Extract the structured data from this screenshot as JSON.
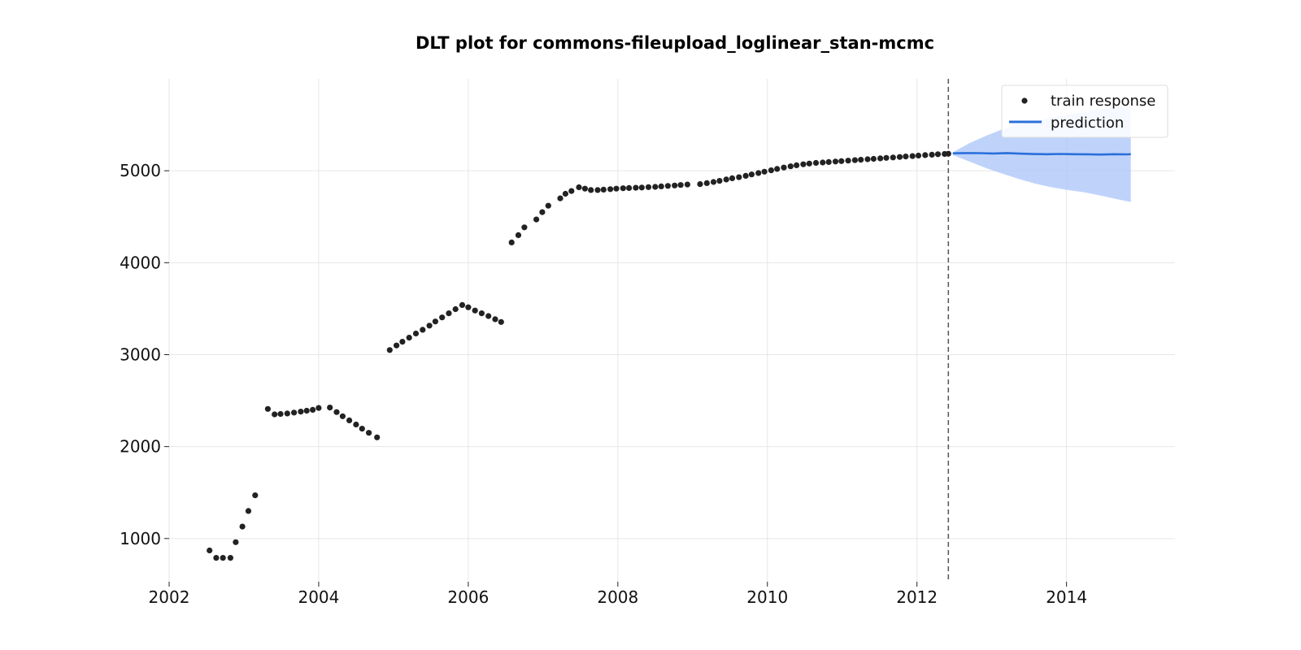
{
  "chart_data": {
    "type": "scatter",
    "title": "DLT plot for commons-fileupload_loglinear_stan-mcmc",
    "xlabel": "",
    "ylabel": "",
    "x_unit": "year",
    "xlim": [
      2002.0,
      2015.45
    ],
    "ylim": [
      530,
      6000
    ],
    "x_ticks": [
      2002,
      2004,
      2006,
      2008,
      2010,
      2012,
      2014
    ],
    "y_ticks": [
      1000,
      2000,
      3000,
      4000,
      5000
    ],
    "x_tick_labels": [
      "2002",
      "2004",
      "2006",
      "2008",
      "2010",
      "2012",
      "2014"
    ],
    "y_tick_labels": [
      "1000",
      "2000",
      "3000",
      "4000",
      "5000"
    ],
    "grid": true,
    "legend_position": "top-right",
    "forecast_start": 2012.42,
    "colors": {
      "train": "#222222",
      "prediction": "#2a6fdb",
      "interval": "#a9c4f8",
      "split_line": "#555555",
      "grid": "#e6e6e6"
    },
    "series": [
      {
        "name": "train response",
        "kind": "scatter",
        "points": [
          [
            2002.54,
            870
          ],
          [
            2002.63,
            790
          ],
          [
            2002.72,
            790
          ],
          [
            2002.82,
            790
          ],
          [
            2002.89,
            960
          ],
          [
            2002.98,
            1130
          ],
          [
            2003.06,
            1300
          ],
          [
            2003.15,
            1470
          ],
          [
            2003.32,
            2410
          ],
          [
            2003.41,
            2350
          ],
          [
            2003.49,
            2355
          ],
          [
            2003.58,
            2360
          ],
          [
            2003.67,
            2370
          ],
          [
            2003.76,
            2380
          ],
          [
            2003.84,
            2390
          ],
          [
            2003.92,
            2400
          ],
          [
            2004.0,
            2420
          ],
          [
            2004.15,
            2425
          ],
          [
            2004.24,
            2375
          ],
          [
            2004.32,
            2330
          ],
          [
            2004.41,
            2285
          ],
          [
            2004.5,
            2240
          ],
          [
            2004.58,
            2195
          ],
          [
            2004.67,
            2150
          ],
          [
            2004.78,
            2100
          ],
          [
            2004.95,
            3050
          ],
          [
            2005.04,
            3100
          ],
          [
            2005.12,
            3140
          ],
          [
            2005.21,
            3185
          ],
          [
            2005.3,
            3230
          ],
          [
            2005.39,
            3270
          ],
          [
            2005.48,
            3315
          ],
          [
            2005.56,
            3360
          ],
          [
            2005.65,
            3405
          ],
          [
            2005.74,
            3450
          ],
          [
            2005.83,
            3495
          ],
          [
            2005.92,
            3540
          ],
          [
            2006.0,
            3515
          ],
          [
            2006.09,
            3480
          ],
          [
            2006.18,
            3450
          ],
          [
            2006.27,
            3420
          ],
          [
            2006.36,
            3385
          ],
          [
            2006.44,
            3355
          ],
          [
            2006.58,
            4220
          ],
          [
            2006.67,
            4300
          ],
          [
            2006.75,
            4385
          ],
          [
            2006.91,
            4470
          ],
          [
            2006.99,
            4550
          ],
          [
            2007.07,
            4620
          ],
          [
            2007.23,
            4700
          ],
          [
            2007.3,
            4750
          ],
          [
            2007.38,
            4780
          ],
          [
            2007.48,
            4820
          ],
          [
            2007.56,
            4805
          ],
          [
            2007.64,
            4790
          ],
          [
            2007.73,
            4790
          ],
          [
            2007.81,
            4795
          ],
          [
            2007.9,
            4800
          ],
          [
            2007.98,
            4805
          ],
          [
            2008.07,
            4810
          ],
          [
            2008.15,
            4812
          ],
          [
            2008.24,
            4815
          ],
          [
            2008.32,
            4818
          ],
          [
            2008.41,
            4822
          ],
          [
            2008.5,
            4825
          ],
          [
            2008.58,
            4830
          ],
          [
            2008.67,
            4835
          ],
          [
            2008.76,
            4840
          ],
          [
            2008.84,
            4845
          ],
          [
            2008.93,
            4850
          ],
          [
            2009.1,
            4855
          ],
          [
            2009.19,
            4865
          ],
          [
            2009.28,
            4878
          ],
          [
            2009.36,
            4890
          ],
          [
            2009.45,
            4905
          ],
          [
            2009.53,
            4918
          ],
          [
            2009.62,
            4930
          ],
          [
            2009.71,
            4945
          ],
          [
            2009.79,
            4960
          ],
          [
            2009.88,
            4975
          ],
          [
            2009.96,
            4990
          ],
          [
            2010.05,
            5005
          ],
          [
            2010.13,
            5020
          ],
          [
            2010.22,
            5035
          ],
          [
            2010.31,
            5048
          ],
          [
            2010.39,
            5060
          ],
          [
            2010.48,
            5070
          ],
          [
            2010.56,
            5078
          ],
          [
            2010.65,
            5085
          ],
          [
            2010.74,
            5090
          ],
          [
            2010.82,
            5095
          ],
          [
            2010.91,
            5100
          ],
          [
            2010.99,
            5105
          ],
          [
            2011.08,
            5110
          ],
          [
            2011.17,
            5115
          ],
          [
            2011.25,
            5120
          ],
          [
            2011.34,
            5125
          ],
          [
            2011.42,
            5130
          ],
          [
            2011.51,
            5135
          ],
          [
            2011.59,
            5140
          ],
          [
            2011.68,
            5145
          ],
          [
            2011.77,
            5150
          ],
          [
            2011.85,
            5155
          ],
          [
            2011.94,
            5160
          ],
          [
            2012.02,
            5165
          ],
          [
            2012.11,
            5170
          ],
          [
            2012.2,
            5175
          ],
          [
            2012.28,
            5180
          ],
          [
            2012.37,
            5183
          ],
          [
            2012.42,
            5185
          ]
        ]
      },
      {
        "name": "prediction",
        "kind": "line",
        "points": [
          [
            2012.48,
            5190
          ],
          [
            2012.66,
            5192
          ],
          [
            2012.84,
            5191
          ],
          [
            2013.02,
            5188
          ],
          [
            2013.2,
            5192
          ],
          [
            2013.38,
            5186
          ],
          [
            2013.56,
            5182
          ],
          [
            2013.74,
            5180
          ],
          [
            2013.92,
            5183
          ],
          [
            2014.1,
            5180
          ],
          [
            2014.28,
            5179
          ],
          [
            2014.46,
            5176
          ],
          [
            2014.64,
            5180
          ],
          [
            2014.82,
            5178
          ],
          [
            2014.86,
            5181
          ]
        ]
      },
      {
        "name": "",
        "kind": "interval",
        "x": [
          2012.48,
          2012.7,
          2012.92,
          2013.14,
          2013.36,
          2013.58,
          2013.8,
          2014.02,
          2014.24,
          2014.46,
          2014.68,
          2014.86
        ],
        "upper": [
          5200,
          5300,
          5380,
          5450,
          5500,
          5540,
          5580,
          5610,
          5640,
          5670,
          5690,
          5700
        ],
        "lower": [
          5170,
          5100,
          5030,
          4970,
          4910,
          4860,
          4820,
          4790,
          4765,
          4730,
          4690,
          4660
        ]
      }
    ]
  }
}
